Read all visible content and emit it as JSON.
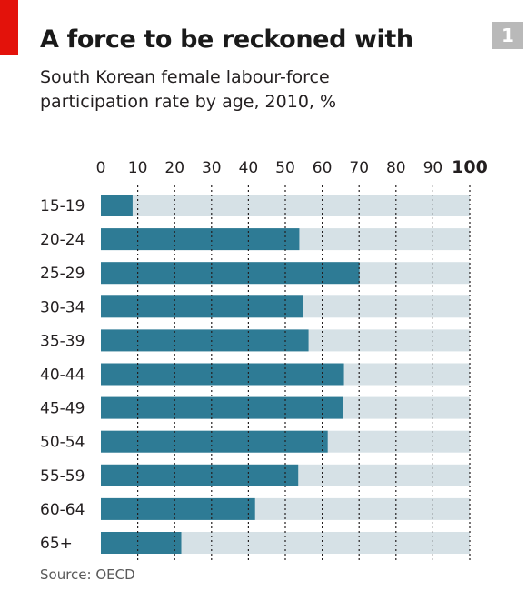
{
  "header": {
    "title": "A force to be reckoned with",
    "subtitle": "South Korean female labour-force participation rate by age, 2010, %",
    "badge": "1"
  },
  "colors": {
    "accent_red": "#e3120b",
    "bar": "#2e7b95",
    "track": "#d6e1e6",
    "badge_bg": "#b9b9b9"
  },
  "chart_data": {
    "type": "bar",
    "orientation": "horizontal",
    "title": "A force to be reckoned with",
    "subtitle": "South Korean female labour-force participation rate by age, 2010, %",
    "categories": [
      "15-19",
      "20-24",
      "25-29",
      "30-34",
      "35-39",
      "40-44",
      "45-49",
      "50-54",
      "55-59",
      "60-64",
      "65+"
    ],
    "values": [
      8.6,
      53.8,
      70.1,
      54.7,
      56.3,
      65.9,
      65.7,
      61.5,
      53.5,
      41.8,
      21.8
    ],
    "xlim": [
      0,
      100
    ],
    "ticks": [
      "0",
      "10",
      "20",
      "30",
      "40",
      "50",
      "60",
      "70",
      "80",
      "90",
      "100"
    ],
    "grid": true,
    "legend": "none"
  },
  "footer": {
    "source": "Source: OECD"
  }
}
